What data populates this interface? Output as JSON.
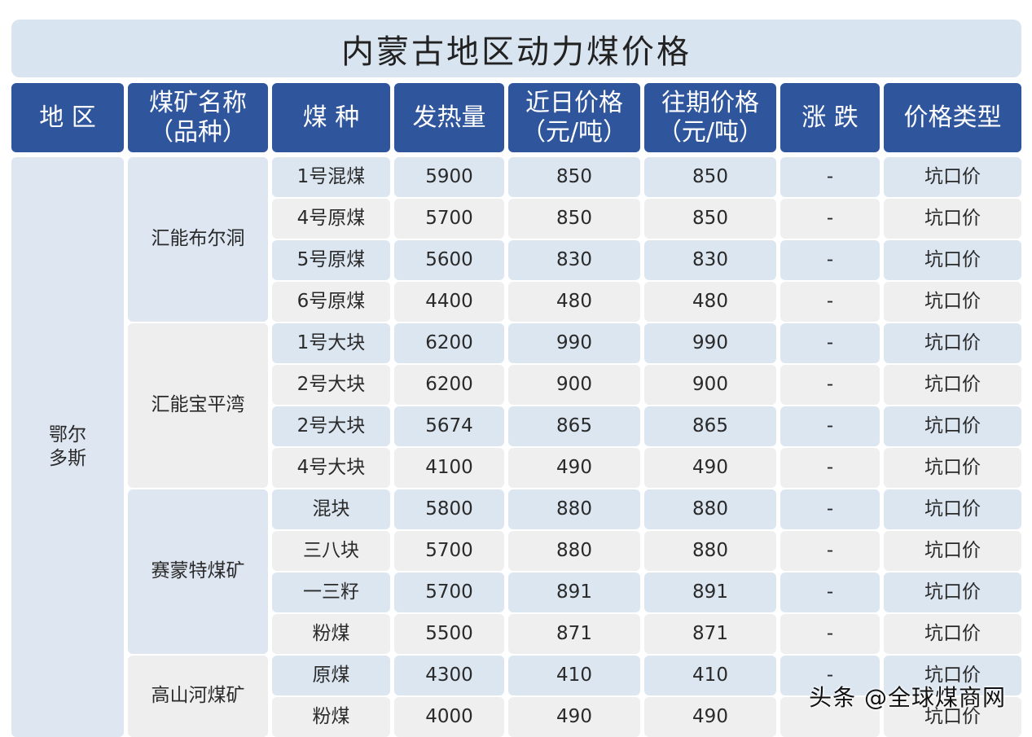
{
  "title": "内蒙古地区动力煤价格",
  "headers": [
    "地 区",
    "煤矿名称\n（品种）",
    "煤 种",
    "发热量",
    "近日价格\n（元/吨）",
    "往期价格\n（元/吨）",
    "涨 跌",
    "价格类型"
  ],
  "region": "鄂尔\n多斯",
  "mines": [
    {
      "name": "汇能布尔洞",
      "rows": 4
    },
    {
      "name": "汇能宝平湾",
      "rows": 4
    },
    {
      "name": "赛蒙特煤矿",
      "rows": 4
    },
    {
      "name": "高山河煤矿",
      "rows": 2
    }
  ],
  "rows": [
    {
      "coal": "1号混煤",
      "heat": "5900",
      "recent": "850",
      "past": "850",
      "change": "-",
      "type": "坑口价"
    },
    {
      "coal": "4号原煤",
      "heat": "5700",
      "recent": "850",
      "past": "850",
      "change": "-",
      "type": "坑口价"
    },
    {
      "coal": "5号原煤",
      "heat": "5600",
      "recent": "830",
      "past": "830",
      "change": "-",
      "type": "坑口价"
    },
    {
      "coal": "6号原煤",
      "heat": "4400",
      "recent": "480",
      "past": "480",
      "change": "-",
      "type": "坑口价"
    },
    {
      "coal": "1号大块",
      "heat": "6200",
      "recent": "990",
      "past": "990",
      "change": "-",
      "type": "坑口价"
    },
    {
      "coal": "2号大块",
      "heat": "6200",
      "recent": "900",
      "past": "900",
      "change": "-",
      "type": "坑口价"
    },
    {
      "coal": "2号大块",
      "heat": "5674",
      "recent": "865",
      "past": "865",
      "change": "-",
      "type": "坑口价"
    },
    {
      "coal": "4号大块",
      "heat": "4100",
      "recent": "490",
      "past": "490",
      "change": "-",
      "type": "坑口价"
    },
    {
      "coal": "混块",
      "heat": "5800",
      "recent": "880",
      "past": "880",
      "change": "-",
      "type": "坑口价"
    },
    {
      "coal": "三八块",
      "heat": "5700",
      "recent": "880",
      "past": "880",
      "change": "-",
      "type": "坑口价"
    },
    {
      "coal": "一三籽",
      "heat": "5700",
      "recent": "891",
      "past": "891",
      "change": "-",
      "type": "坑口价"
    },
    {
      "coal": "粉煤",
      "heat": "5500",
      "recent": "871",
      "past": "871",
      "change": "-",
      "type": "坑口价"
    },
    {
      "coal": "原煤",
      "heat": "4300",
      "recent": "410",
      "past": "410",
      "change": "-",
      "type": "坑口价"
    },
    {
      "coal": "粉煤",
      "heat": "4000",
      "recent": "490",
      "past": "490",
      "change": "",
      "type": "坑口价"
    }
  ],
  "watermark": "头条 @全球煤商网"
}
